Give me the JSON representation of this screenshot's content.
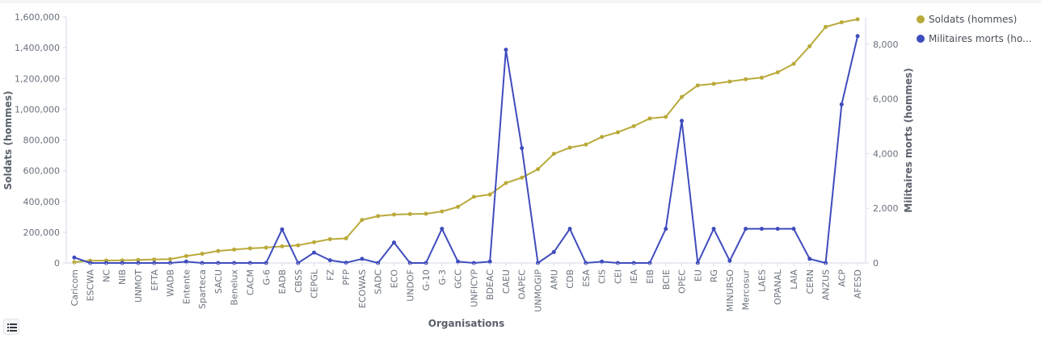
{
  "chart_data": {
    "type": "line",
    "xlabel": "Organisations",
    "ylabel_left": "Soldats (hommes)",
    "ylabel_right": "Militaires morts (hommes)",
    "ylim_left": [
      0,
      1600000
    ],
    "ylim_right": [
      0,
      9000
    ],
    "yticks_left": [
      "0",
      "200,000",
      "400,000",
      "600,000",
      "800,000",
      "1,000,000",
      "1,200,000",
      "1,400,000",
      "1,600,000"
    ],
    "yticks_right": [
      "0",
      "2,000",
      "4,000",
      "6,000",
      "8,000"
    ],
    "yticks_right_values": [
      0,
      2000,
      4000,
      6000,
      8000
    ],
    "grid": false,
    "legend_position": "right",
    "categories": [
      "Caricom",
      "ESCWA",
      "NC",
      "NIB",
      "UNMOT",
      "EFTA",
      "WADB",
      "Entente",
      "Sparteca",
      "SACU",
      "Benelux",
      "CACM",
      "G-6",
      "EADB",
      "CBSS",
      "CEPGL",
      "FZ",
      "PFP",
      "ECOWAS",
      "SADC",
      "ECO",
      "UNDOF",
      "G-10",
      "G-3",
      "GCC",
      "UNFICYP",
      "BDEAC",
      "CAEU",
      "OAPEC",
      "UNMOGIP",
      "AMU",
      "CDB",
      "ESA",
      "CIS",
      "CEI",
      "IEA",
      "EIB",
      "BCIE",
      "OPEC",
      "EU",
      "RG",
      "MINURSO",
      "Mercosur",
      "LAES",
      "OPANAL",
      "LAIA",
      "CERN",
      "ANZUS",
      "ACP",
      "AFESD"
    ],
    "series": [
      {
        "name": "Soldats (hommes)",
        "color": "#b9aa3a",
        "axis": "left",
        "values": [
          5000,
          15000,
          16000,
          17000,
          20000,
          23000,
          25000,
          45000,
          60000,
          78000,
          87000,
          95000,
          100000,
          108000,
          115000,
          135000,
          155000,
          160000,
          280000,
          305000,
          315000,
          318000,
          320000,
          335000,
          365000,
          430000,
          445000,
          520000,
          555000,
          610000,
          710000,
          750000,
          770000,
          820000,
          850000,
          890000,
          940000,
          950000,
          1080000,
          1155000,
          1165000,
          1180000,
          1195000,
          1205000,
          1240000,
          1295000,
          1410000,
          1535000,
          1565000,
          1585000
        ]
      },
      {
        "name": "Militaires morts (hommes)",
        "color": "#3f4cbd",
        "axis": "right",
        "values": [
          200,
          0,
          0,
          0,
          0,
          0,
          0,
          50,
          0,
          0,
          0,
          0,
          0,
          1230,
          0,
          380,
          100,
          10,
          150,
          0,
          750,
          0,
          0,
          1250,
          50,
          0,
          50,
          7800,
          4200,
          0,
          400,
          1250,
          0,
          50,
          0,
          0,
          0,
          1250,
          5200,
          0,
          1250,
          80,
          1250,
          1250,
          1250,
          1250,
          150,
          0,
          5800,
          8300
        ]
      }
    ]
  },
  "ui": {
    "legend_toggle_icon": "list-icon"
  }
}
